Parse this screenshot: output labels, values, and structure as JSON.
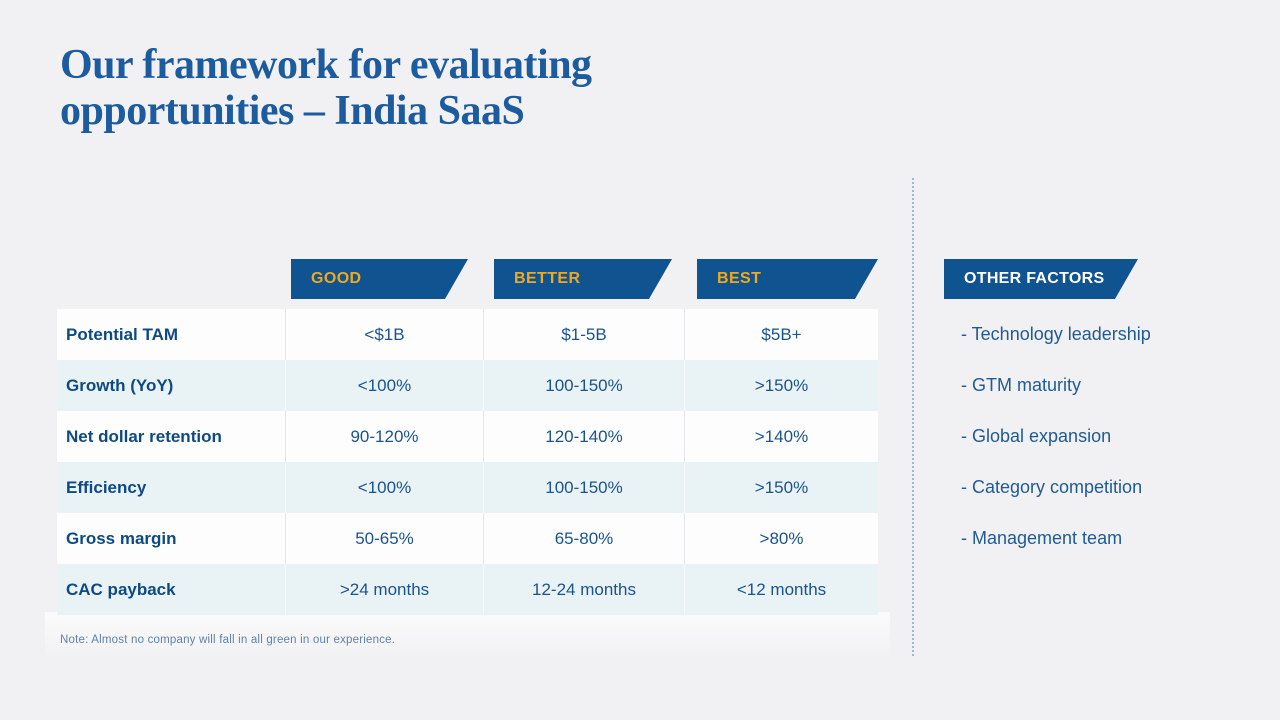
{
  "slide": {
    "title_line1": "Our framework for evaluating",
    "title_line2": "opportunities – India SaaS",
    "note": "Note: Almost no company will fall in all green in our experience."
  },
  "colors": {
    "background": "#f1f0f2",
    "badge_blue": "#105391",
    "badge_gold_text": "#f0a91c",
    "badge_white_text": "#ffffff",
    "title_blue": "#1c5c9e",
    "row_alt_bg": "#e9f2f5",
    "divider_dots": "#9db8cd"
  },
  "table": {
    "column_badges": [
      "GOOD",
      "BETTER",
      "BEST"
    ],
    "rows": [
      {
        "label": "Potential TAM",
        "values": [
          "<$1B",
          "$1-5B",
          "$5B+"
        ]
      },
      {
        "label": "Growth (YoY)",
        "values": [
          "<100%",
          "100-150%",
          ">150%"
        ]
      },
      {
        "label": "Net dollar retention",
        "values": [
          "90-120%",
          "120-140%",
          ">140%"
        ]
      },
      {
        "label": "Efficiency",
        "values": [
          "<100%",
          "100-150%",
          ">150%"
        ]
      },
      {
        "label": "Gross margin",
        "values": [
          "50-65%",
          "65-80%",
          ">80%"
        ]
      },
      {
        "label": "CAC payback",
        "values": [
          ">24 months",
          "12-24 months",
          "<12 months"
        ]
      }
    ]
  },
  "other_factors": {
    "badge": "OTHER FACTORS",
    "items": [
      "- Technology leadership",
      "- GTM maturity",
      "- Global expansion",
      "- Category competition",
      "- Management team"
    ]
  }
}
